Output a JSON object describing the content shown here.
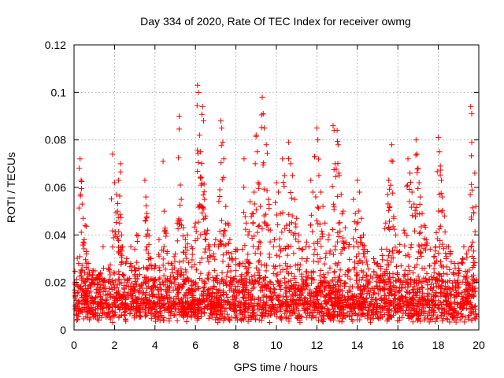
{
  "chart_data": {
    "type": "scatter",
    "title": "Day 334 of 2020, Rate Of TEC Index for receiver owmg",
    "xlabel": "GPS time / hours",
    "ylabel": "ROTI / TECUs",
    "xlim": [
      0,
      20
    ],
    "ylim": [
      0,
      0.12
    ],
    "xticks": [
      0,
      2,
      4,
      6,
      8,
      10,
      12,
      14,
      16,
      18,
      20
    ],
    "yticks": [
      0,
      0.02,
      0.04,
      0.06,
      0.08,
      0.1,
      0.12
    ],
    "xtick_labels": [
      "0",
      "2",
      "4",
      "6",
      "8",
      "10",
      "12",
      "14",
      "16",
      "18",
      "20"
    ],
    "ytick_labels": [
      "0",
      "0.02",
      "0.04",
      "0.06",
      "0.08",
      "0.1",
      "0.12"
    ],
    "grid": true,
    "marker": "+",
    "color": "#ff0000",
    "series": [
      {
        "name": "ROTI",
        "points": [
          [
            0.3,
            0.072
          ],
          [
            0.35,
            0.063
          ],
          [
            0.4,
            0.053
          ],
          [
            0.45,
            0.047
          ],
          [
            0.5,
            0.038
          ],
          [
            0.55,
            0.044
          ],
          [
            0.6,
            0.033
          ],
          [
            0.7,
            0.028
          ],
          [
            0.9,
            0.025
          ],
          [
            1.1,
            0.022
          ],
          [
            1.3,
            0.024
          ],
          [
            1.5,
            0.021
          ],
          [
            1.7,
            0.026
          ],
          [
            1.9,
            0.074
          ],
          [
            2.0,
            0.062
          ],
          [
            2.1,
            0.057
          ],
          [
            2.15,
            0.05
          ],
          [
            2.2,
            0.063
          ],
          [
            2.25,
            0.045
          ],
          [
            2.3,
            0.07
          ],
          [
            2.35,
            0.04
          ],
          [
            2.4,
            0.035
          ],
          [
            2.6,
            0.03
          ],
          [
            2.8,
            0.028
          ],
          [
            3.0,
            0.034
          ],
          [
            3.1,
            0.04
          ],
          [
            3.2,
            0.026
          ],
          [
            3.5,
            0.063
          ],
          [
            3.55,
            0.056
          ],
          [
            3.6,
            0.049
          ],
          [
            3.65,
            0.042
          ],
          [
            3.7,
            0.036
          ],
          [
            3.8,
            0.03
          ],
          [
            4.0,
            0.027
          ],
          [
            4.2,
            0.038
          ],
          [
            4.4,
            0.071
          ],
          [
            4.45,
            0.05
          ],
          [
            4.5,
            0.042
          ],
          [
            4.6,
            0.033
          ],
          [
            4.8,
            0.028
          ],
          [
            5.0,
            0.032
          ],
          [
            5.1,
            0.045
          ],
          [
            5.2,
            0.09
          ],
          [
            5.25,
            0.061
          ],
          [
            5.3,
            0.055
          ],
          [
            5.4,
            0.043
          ],
          [
            5.5,
            0.038
          ],
          [
            5.6,
            0.04
          ],
          [
            5.8,
            0.035
          ],
          [
            6.0,
            0.045
          ],
          [
            6.1,
            0.103
          ],
          [
            6.15,
            0.1
          ],
          [
            6.2,
            0.082
          ],
          [
            6.25,
            0.075
          ],
          [
            6.3,
            0.064
          ],
          [
            6.35,
            0.094
          ],
          [
            6.4,
            0.088
          ],
          [
            6.45,
            0.055
          ],
          [
            6.5,
            0.048
          ],
          [
            6.6,
            0.042
          ],
          [
            6.7,
            0.035
          ],
          [
            6.9,
            0.032
          ],
          [
            7.0,
            0.038
          ],
          [
            7.2,
            0.059
          ],
          [
            7.25,
            0.088
          ],
          [
            7.3,
            0.085
          ],
          [
            7.35,
            0.079
          ],
          [
            7.4,
            0.072
          ],
          [
            7.5,
            0.052
          ],
          [
            7.6,
            0.045
          ],
          [
            7.7,
            0.038
          ],
          [
            7.8,
            0.03
          ],
          [
            8.0,
            0.034
          ],
          [
            8.2,
            0.028
          ],
          [
            8.4,
            0.072
          ],
          [
            8.5,
            0.045
          ],
          [
            8.6,
            0.04
          ],
          [
            8.7,
            0.054
          ],
          [
            8.8,
            0.049
          ],
          [
            8.9,
            0.058
          ],
          [
            9.0,
            0.082
          ],
          [
            9.05,
            0.075
          ],
          [
            9.1,
            0.062
          ],
          [
            9.15,
            0.044
          ],
          [
            9.2,
            0.052
          ],
          [
            9.3,
            0.098
          ],
          [
            9.35,
            0.091
          ],
          [
            9.4,
            0.085
          ],
          [
            9.5,
            0.078
          ],
          [
            9.6,
            0.055
          ],
          [
            9.7,
            0.042
          ],
          [
            9.9,
            0.038
          ],
          [
            10.0,
            0.062
          ],
          [
            10.1,
            0.058
          ],
          [
            10.2,
            0.049
          ],
          [
            10.3,
            0.072
          ],
          [
            10.4,
            0.065
          ],
          [
            10.5,
            0.044
          ],
          [
            10.6,
            0.079
          ],
          [
            10.7,
            0.07
          ],
          [
            10.8,
            0.065
          ],
          [
            10.9,
            0.055
          ],
          [
            11.0,
            0.047
          ],
          [
            11.1,
            0.04
          ],
          [
            11.3,
            0.034
          ],
          [
            11.5,
            0.037
          ],
          [
            11.7,
            0.063
          ],
          [
            11.8,
            0.058
          ],
          [
            11.9,
            0.073
          ],
          [
            12.0,
            0.085
          ],
          [
            12.05,
            0.08
          ],
          [
            12.1,
            0.065
          ],
          [
            12.2,
            0.058
          ],
          [
            12.3,
            0.052
          ],
          [
            12.4,
            0.045
          ],
          [
            12.6,
            0.04
          ],
          [
            12.8,
            0.086
          ],
          [
            12.85,
            0.084
          ],
          [
            12.9,
            0.07
          ],
          [
            13.0,
            0.084
          ],
          [
            13.05,
            0.078
          ],
          [
            13.1,
            0.065
          ],
          [
            13.2,
            0.057
          ],
          [
            13.3,
            0.05
          ],
          [
            13.4,
            0.043
          ],
          [
            13.6,
            0.036
          ],
          [
            13.8,
            0.055
          ],
          [
            13.9,
            0.049
          ],
          [
            14.0,
            0.063
          ],
          [
            14.1,
            0.058
          ],
          [
            14.2,
            0.047
          ],
          [
            14.3,
            0.04
          ],
          [
            14.5,
            0.033
          ],
          [
            14.8,
            0.03
          ],
          [
            15.0,
            0.028
          ],
          [
            15.2,
            0.034
          ],
          [
            15.4,
            0.045
          ],
          [
            15.5,
            0.057
          ],
          [
            15.55,
            0.063
          ],
          [
            15.6,
            0.052
          ],
          [
            15.7,
            0.078
          ],
          [
            15.75,
            0.071
          ],
          [
            15.8,
            0.047
          ],
          [
            15.9,
            0.04
          ],
          [
            16.1,
            0.036
          ],
          [
            16.3,
            0.042
          ],
          [
            16.5,
            0.072
          ],
          [
            16.6,
            0.066
          ],
          [
            16.7,
            0.058
          ],
          [
            16.8,
            0.053
          ],
          [
            16.9,
            0.08
          ],
          [
            16.95,
            0.074
          ],
          [
            17.0,
            0.068
          ],
          [
            17.05,
            0.062
          ],
          [
            17.1,
            0.056
          ],
          [
            17.2,
            0.049
          ],
          [
            17.3,
            0.044
          ],
          [
            17.4,
            0.038
          ],
          [
            17.6,
            0.034
          ],
          [
            17.8,
            0.031
          ],
          [
            17.9,
            0.041
          ],
          [
            18.0,
            0.081
          ],
          [
            18.05,
            0.075
          ],
          [
            18.1,
            0.069
          ],
          [
            18.15,
            0.063
          ],
          [
            18.2,
            0.056
          ],
          [
            18.3,
            0.048
          ],
          [
            18.4,
            0.035
          ],
          [
            18.6,
            0.033
          ],
          [
            18.8,
            0.028
          ],
          [
            19.0,
            0.026
          ],
          [
            19.2,
            0.03
          ],
          [
            19.4,
            0.032
          ],
          [
            19.6,
            0.094
          ],
          [
            19.65,
            0.091
          ],
          [
            19.7,
            0.037
          ],
          [
            19.75,
            0.03
          ],
          [
            19.8,
            0.066
          ]
        ],
        "base_band": {
          "x_range": [
            0.0,
            19.9
          ],
          "y_min": 0.003,
          "y_typical": 0.011,
          "y_max": 0.03
        }
      }
    ]
  }
}
